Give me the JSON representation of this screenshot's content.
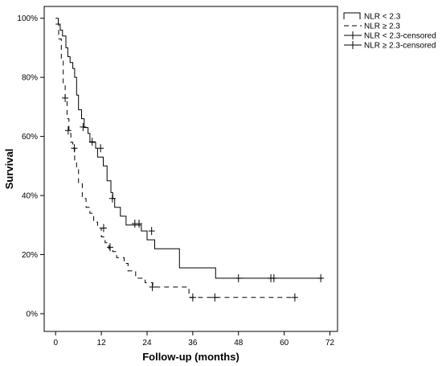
{
  "chart_data": {
    "type": "line",
    "xlabel": "Follow-up (months)",
    "ylabel": "Survival",
    "xlim": [
      -3,
      74
    ],
    "ylim": [
      -0.06,
      1.04
    ],
    "x_ticks": [
      0,
      12,
      24,
      36,
      48,
      60,
      72
    ],
    "y_ticks": [
      0,
      0.2,
      0.4,
      0.6,
      0.8,
      1.0
    ],
    "y_tick_labels": [
      "0%",
      "20%",
      "40%",
      "60%",
      "80%",
      "100%"
    ],
    "legend_position": "top-right",
    "legend": [
      {
        "label": "NLR < 2.3",
        "style": "solid"
      },
      {
        "label": "NLR ≥ 2.3",
        "style": "dashed"
      },
      {
        "label": "NLR < 2.3-censored",
        "style": "censor"
      },
      {
        "label": "NLR ≥ 2.3-censored",
        "style": "censor"
      }
    ],
    "series": [
      {
        "name": "NLR < 2.3",
        "style": "solid",
        "steps": [
          [
            0,
            1.0
          ],
          [
            0.7,
            0.98
          ],
          [
            1.2,
            0.96
          ],
          [
            1.8,
            0.94
          ],
          [
            2.7,
            0.9
          ],
          [
            3.2,
            0.87
          ],
          [
            3.8,
            0.85
          ],
          [
            4.5,
            0.83
          ],
          [
            5.0,
            0.8
          ],
          [
            5.5,
            0.74
          ],
          [
            6.0,
            0.69
          ],
          [
            6.8,
            0.66
          ],
          [
            7.5,
            0.63
          ],
          [
            8.5,
            0.61
          ],
          [
            9.0,
            0.58
          ],
          [
            10.5,
            0.56
          ],
          [
            11.0,
            0.53
          ],
          [
            12.5,
            0.5
          ],
          [
            13.5,
            0.45
          ],
          [
            14.5,
            0.41
          ],
          [
            15.0,
            0.39
          ],
          [
            15.5,
            0.36
          ],
          [
            17.0,
            0.33
          ],
          [
            18.5,
            0.3
          ],
          [
            22.5,
            0.28
          ],
          [
            24.0,
            0.25
          ],
          [
            26.0,
            0.22
          ],
          [
            32.5,
            0.155
          ],
          [
            42.0,
            0.12
          ],
          [
            70.0,
            0.12
          ]
        ],
        "censored": [
          [
            7.2,
            0.632
          ],
          [
            9.6,
            0.582
          ],
          [
            11.8,
            0.56
          ],
          [
            14.9,
            0.39
          ],
          [
            20.8,
            0.305
          ],
          [
            21.9,
            0.305
          ],
          [
            25.2,
            0.28
          ],
          [
            48.0,
            0.12
          ],
          [
            56.5,
            0.12
          ],
          [
            57.3,
            0.12
          ],
          [
            69.6,
            0.12
          ]
        ]
      },
      {
        "name": "NLR ≥ 2.3",
        "style": "dashed",
        "steps": [
          [
            0,
            0.98
          ],
          [
            0.8,
            0.93
          ],
          [
            1.5,
            0.86
          ],
          [
            2.0,
            0.78
          ],
          [
            2.5,
            0.73
          ],
          [
            3.0,
            0.66
          ],
          [
            3.5,
            0.61
          ],
          [
            4.0,
            0.58
          ],
          [
            4.5,
            0.56
          ],
          [
            5.0,
            0.52
          ],
          [
            5.5,
            0.49
          ],
          [
            6.0,
            0.44
          ],
          [
            7.0,
            0.39
          ],
          [
            8.0,
            0.36
          ],
          [
            9.0,
            0.34
          ],
          [
            10.0,
            0.31
          ],
          [
            11.0,
            0.29
          ],
          [
            12.0,
            0.26
          ],
          [
            13.0,
            0.24
          ],
          [
            14.0,
            0.22
          ],
          [
            15.0,
            0.21
          ],
          [
            16.0,
            0.19
          ],
          [
            18.0,
            0.17
          ],
          [
            19.0,
            0.145
          ],
          [
            21.0,
            0.12
          ],
          [
            23.5,
            0.105
          ],
          [
            25.5,
            0.09
          ],
          [
            35.0,
            0.055
          ],
          [
            63.0,
            0.055
          ]
        ],
        "censored": [
          [
            2.5,
            0.73
          ],
          [
            3.3,
            0.62
          ],
          [
            4.9,
            0.56
          ],
          [
            12.6,
            0.29
          ],
          [
            14.3,
            0.225
          ],
          [
            25.4,
            0.09
          ],
          [
            36.0,
            0.055
          ],
          [
            41.8,
            0.055
          ],
          [
            62.8,
            0.055
          ]
        ]
      }
    ]
  }
}
